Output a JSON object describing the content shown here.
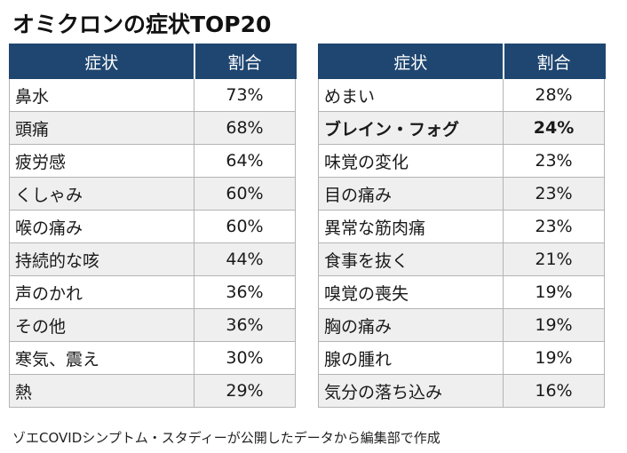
{
  "title": "オミクロンの症状TOP20",
  "headers": {
    "symptom": "症状",
    "ratio": "割合"
  },
  "left_table": [
    {
      "name": "鼻水",
      "pct": "73%"
    },
    {
      "name": "頭痛",
      "pct": "68%"
    },
    {
      "name": "疲労感",
      "pct": "64%"
    },
    {
      "name": "くしゃみ",
      "pct": "60%"
    },
    {
      "name": "喉の痛み",
      "pct": "60%"
    },
    {
      "name": "持続的な咳",
      "pct": "44%"
    },
    {
      "name": "声のかれ",
      "pct": "36%"
    },
    {
      "name": "その他",
      "pct": "36%"
    },
    {
      "name": "寒気、震え",
      "pct": "30%"
    },
    {
      "name": "熱",
      "pct": "29%"
    }
  ],
  "right_table": [
    {
      "name": "めまい",
      "pct": "28%"
    },
    {
      "name": "ブレイン・フォグ",
      "pct": "24%"
    },
    {
      "name": "味覚の変化",
      "pct": "23%"
    },
    {
      "name": "目の痛み",
      "pct": "23%"
    },
    {
      "name": "異常な筋肉痛",
      "pct": "23%"
    },
    {
      "name": "食事を抜く",
      "pct": "21%"
    },
    {
      "name": "嗅覚の喪失",
      "pct": "19%"
    },
    {
      "name": "胸の痛み",
      "pct": "19%"
    },
    {
      "name": "腺の腫れ",
      "pct": "19%"
    },
    {
      "name": "気分の落ち込み",
      "pct": "16%"
    }
  ],
  "source_note": "ゾエCOVIDシンプトム・スタディーが公開したデータから編集部で作成",
  "colors": {
    "header_bg": "#1f4670",
    "stripe": "#efefef"
  }
}
